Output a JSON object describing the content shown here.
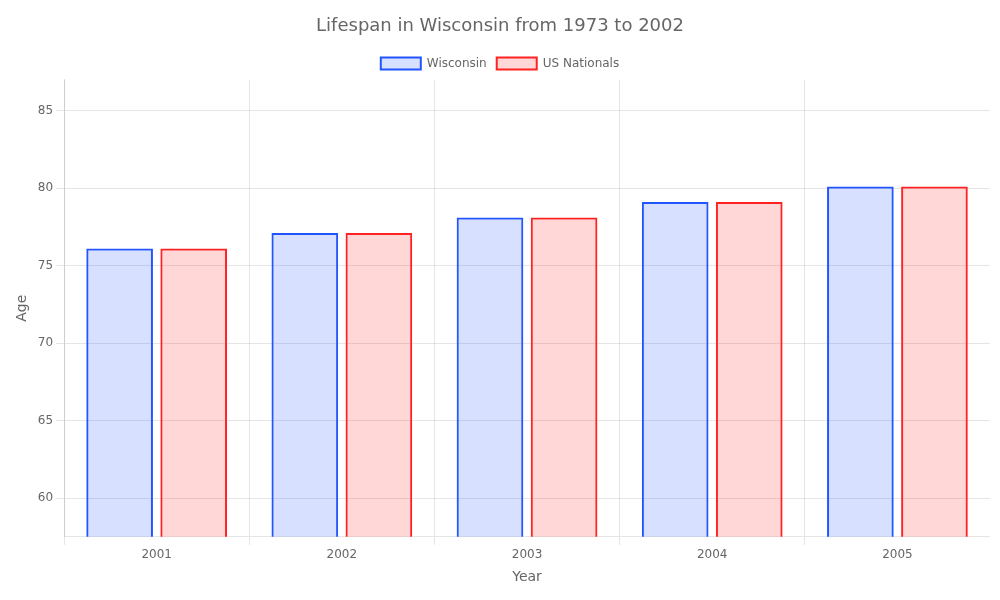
{
  "chart_data": {
    "type": "bar",
    "title": "Lifespan in Wisconsin from 1973 to 2002",
    "xlabel": "Year",
    "ylabel": "Age",
    "categories": [
      "2001",
      "2002",
      "2003",
      "2004",
      "2005"
    ],
    "series": [
      {
        "name": "Wisconsin",
        "color": "#2255ff",
        "values": [
          76.1,
          77.1,
          78.1,
          79.1,
          80.1
        ]
      },
      {
        "name": "US Nationals",
        "color": "#ff2222",
        "values": [
          76.1,
          77.1,
          78.1,
          79.1,
          80.1
        ]
      }
    ],
    "ylim": [
      57.5,
      87
    ],
    "yticks": [
      60,
      65,
      70,
      75,
      80,
      85
    ],
    "grid": true,
    "legend": "top"
  }
}
